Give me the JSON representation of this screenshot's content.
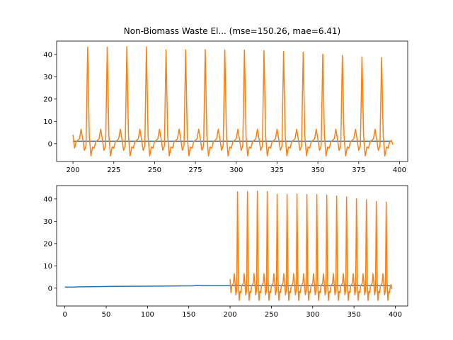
{
  "chart_data": [
    {
      "type": "line",
      "title": "Non-Biomass Waste El... (mse=150.26, mae=6.41)",
      "xlabel": "",
      "ylabel": "",
      "xlim": [
        190,
        405
      ],
      "ylim": [
        -8,
        46
      ],
      "xticks": [
        200,
        225,
        250,
        275,
        300,
        325,
        350,
        375,
        400
      ],
      "yticks": [
        0,
        10,
        20,
        30,
        40
      ],
      "grid": false,
      "legend": "none",
      "series": [
        {
          "color": "#1f77b4",
          "x": [
            200,
            395
          ],
          "y": [
            1.1,
            1.1
          ]
        },
        {
          "color": "#ff7f0e",
          "pattern": "seasonal_spikes",
          "x_start": 200,
          "x_end": 396,
          "period": 12,
          "first_peak": 209,
          "peak_values": [
            43.2,
            43.3,
            43.5,
            43.4,
            42.1,
            42.1,
            42.2,
            42.0,
            42.0,
            41.7,
            41.3,
            40.9,
            40.1,
            39.6,
            38.9,
            38.6
          ],
          "trough_value": -5.5
        }
      ]
    },
    {
      "type": "line",
      "title": "",
      "xlabel": "",
      "ylabel": "",
      "xlim": [
        -10,
        415
      ],
      "ylim": [
        -8,
        46
      ],
      "xticks": [
        0,
        50,
        100,
        150,
        200,
        250,
        300,
        350,
        400
      ],
      "yticks": [
        0,
        10,
        20,
        30,
        40
      ],
      "grid": false,
      "legend": "none",
      "series": [
        {
          "color": "#1f77b4",
          "x": [
            0,
            10,
            20,
            40,
            60,
            80,
            100,
            120,
            140,
            155,
            160,
            165,
            170,
            180,
            200,
            395
          ],
          "y": [
            0.5,
            0.5,
            0.6,
            0.7,
            0.8,
            0.85,
            0.9,
            0.95,
            1.0,
            1.05,
            1.2,
            1.15,
            1.1,
            1.1,
            1.1,
            1.1
          ]
        },
        {
          "color": "#ff7f0e",
          "pattern": "seasonal_spikes",
          "x_start": 200,
          "x_end": 396,
          "period": 12,
          "first_peak": 209,
          "peak_values": [
            43.2,
            43.3,
            43.5,
            43.4,
            42.1,
            42.1,
            42.2,
            42.0,
            42.0,
            41.7,
            41.3,
            40.9,
            40.1,
            39.6,
            38.9,
            38.6
          ],
          "trough_value": -5.5
        }
      ]
    }
  ]
}
